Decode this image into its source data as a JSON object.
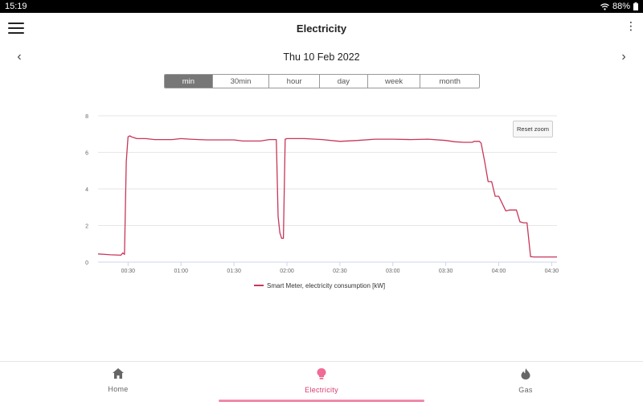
{
  "status": {
    "time": "15:19",
    "battery": "88%"
  },
  "header": {
    "title": "Electricity"
  },
  "date": {
    "label": "Thu 10 Feb 2022"
  },
  "ranges": {
    "items": [
      "min",
      "30min",
      "hour",
      "day",
      "week",
      "month"
    ],
    "active": "min"
  },
  "chart": {
    "reset_zoom_label": "Reset zoom"
  },
  "chart_data": {
    "type": "line",
    "title": "",
    "xlabel": "",
    "ylabel": "",
    "series": [
      {
        "name": "Smart Meter, electricity consumption [kW]",
        "color": "#c8365a",
        "x": [
          "00:13",
          "00:20",
          "00:26",
          "00:27",
          "00:28",
          "00:29",
          "00:30",
          "00:31",
          "00:32",
          "00:35",
          "00:40",
          "00:45",
          "00:50",
          "00:55",
          "01:00",
          "01:05",
          "01:10",
          "01:15",
          "01:20",
          "01:25",
          "01:30",
          "01:35",
          "01:40",
          "01:45",
          "01:50",
          "01:54",
          "01:55",
          "01:56",
          "01:57",
          "01:58",
          "01:59",
          "02:00",
          "02:10",
          "02:20",
          "02:30",
          "02:40",
          "02:50",
          "03:00",
          "03:10",
          "03:20",
          "03:30",
          "03:35",
          "03:40",
          "03:43",
          "03:45",
          "03:46",
          "03:47",
          "03:49",
          "03:50",
          "03:52",
          "03:54",
          "03:56",
          "03:58",
          "04:00",
          "04:02",
          "04:04",
          "04:06",
          "04:08",
          "04:10",
          "04:12",
          "04:14",
          "04:16",
          "04:18",
          "04:20",
          "04:25",
          "04:30",
          "04:33"
        ],
        "y": [
          0.45,
          0.4,
          0.38,
          0.5,
          0.42,
          5.5,
          6.85,
          6.9,
          6.85,
          6.75,
          6.75,
          6.7,
          6.7,
          6.7,
          6.75,
          6.72,
          6.7,
          6.68,
          6.68,
          6.68,
          6.68,
          6.62,
          6.62,
          6.62,
          6.7,
          6.7,
          2.5,
          1.6,
          1.3,
          1.3,
          6.72,
          6.75,
          6.75,
          6.7,
          6.6,
          6.65,
          6.72,
          6.72,
          6.7,
          6.72,
          6.65,
          6.58,
          6.55,
          6.55,
          6.55,
          6.6,
          6.6,
          6.6,
          6.5,
          5.5,
          4.4,
          4.4,
          3.6,
          3.6,
          3.2,
          2.8,
          2.85,
          2.85,
          2.85,
          2.2,
          2.15,
          2.15,
          0.3,
          0.28,
          0.28,
          0.28,
          0.28
        ]
      }
    ],
    "x_ticks": [
      "00:30",
      "01:00",
      "01:30",
      "02:00",
      "02:30",
      "03:00",
      "03:30",
      "04:00",
      "04:30"
    ],
    "y_ticks": [
      "0",
      "2",
      "4",
      "6",
      "8"
    ],
    "ylim": [
      0,
      8
    ],
    "xlim": [
      "00:13",
      "04:33"
    ],
    "grid": true,
    "legend": "bottom"
  },
  "bottom_nav": {
    "home": "Home",
    "electricity": "Electricity",
    "gas": "Gas"
  }
}
